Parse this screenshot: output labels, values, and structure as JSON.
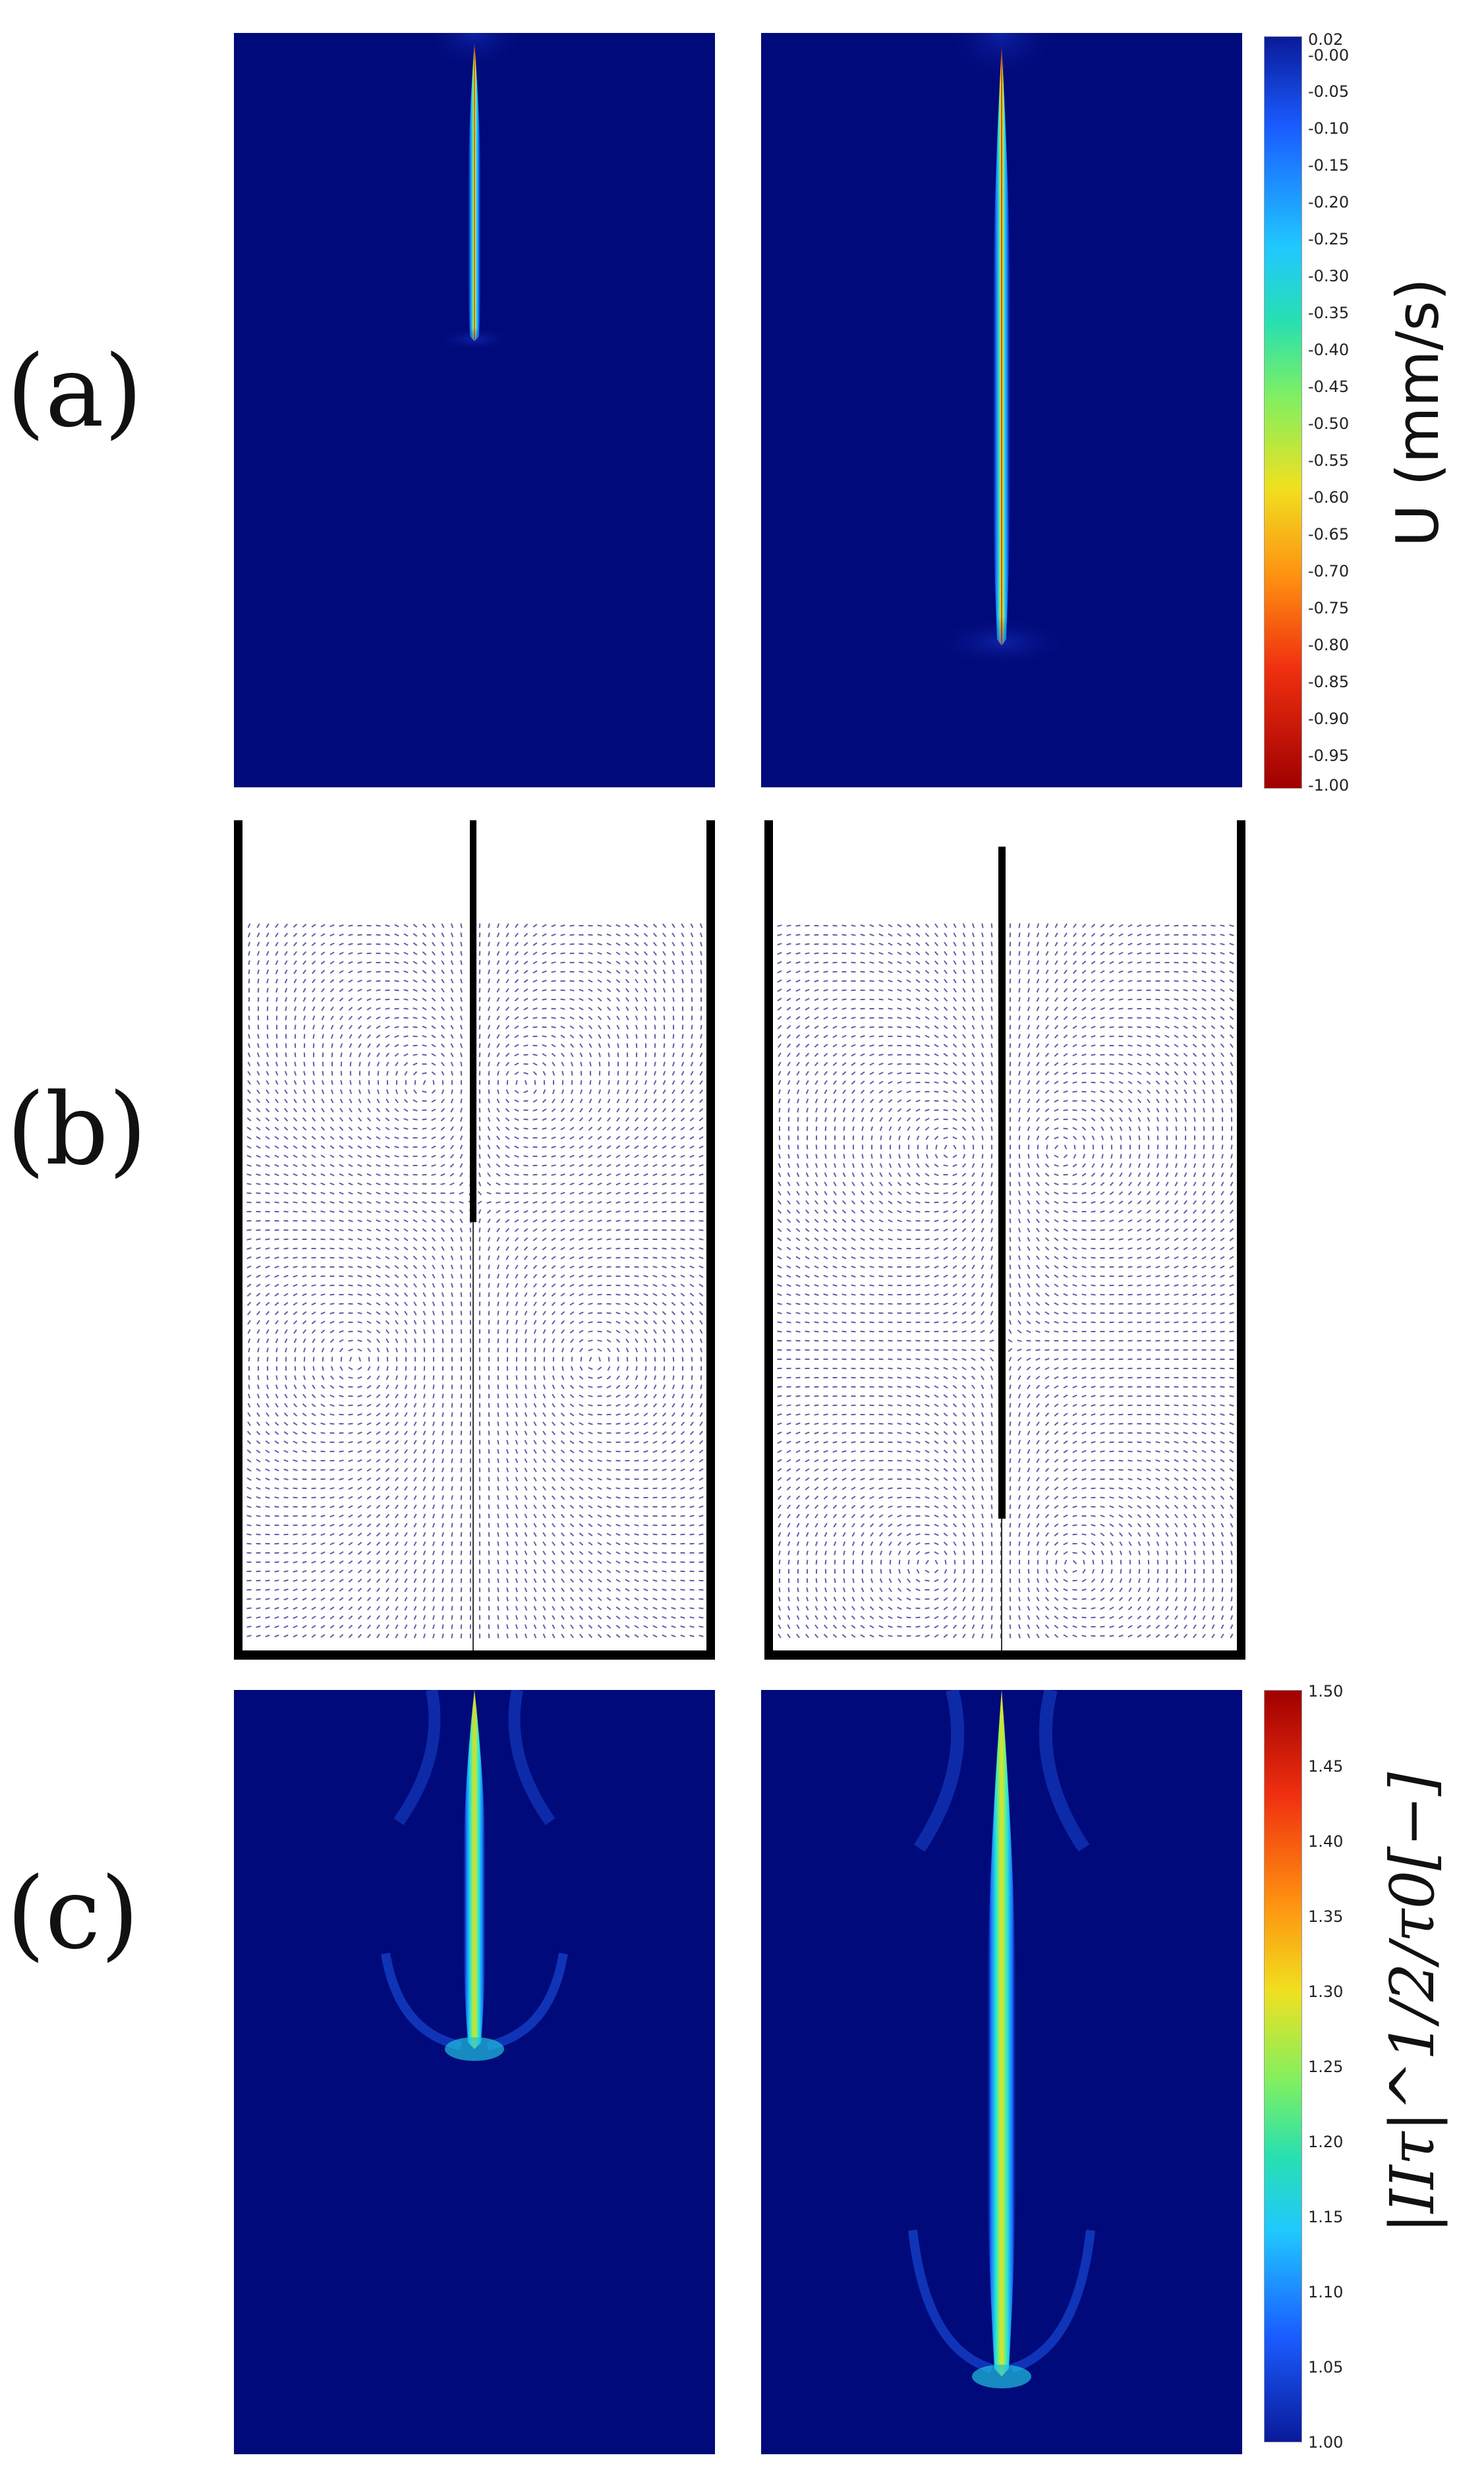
{
  "figure": {
    "panel_labels": [
      "(a)",
      "(b)",
      "(c)"
    ],
    "colorbar_a": {
      "title": "U (mm/s)",
      "ticks": [
        "0.02",
        "-0.00",
        "-0.05",
        "-0.10",
        "-0.15",
        "-0.20",
        "-0.25",
        "-0.30",
        "-0.35",
        "-0.40",
        "-0.45",
        "-0.50",
        "-0.55",
        "-0.60",
        "-0.65",
        "-0.70",
        "-0.75",
        "-0.80",
        "-0.85",
        "-0.90",
        "-0.95",
        "-1.00"
      ],
      "range": [
        -1.0,
        0.02
      ],
      "colormap": "jet-reversed"
    },
    "colorbar_c": {
      "title": "|IIτ|^1/2/τ0[−]",
      "ticks": [
        "1.50",
        "1.45",
        "1.40",
        "1.35",
        "1.30",
        "1.25",
        "1.20",
        "1.15",
        "1.10",
        "1.05",
        "1.00"
      ],
      "range": [
        1.0,
        1.5
      ],
      "colormap": "jet"
    },
    "colors": {
      "field_background": "#010a7a",
      "vector_arrows": "#2a2a8a",
      "walls": "#000000"
    }
  }
}
